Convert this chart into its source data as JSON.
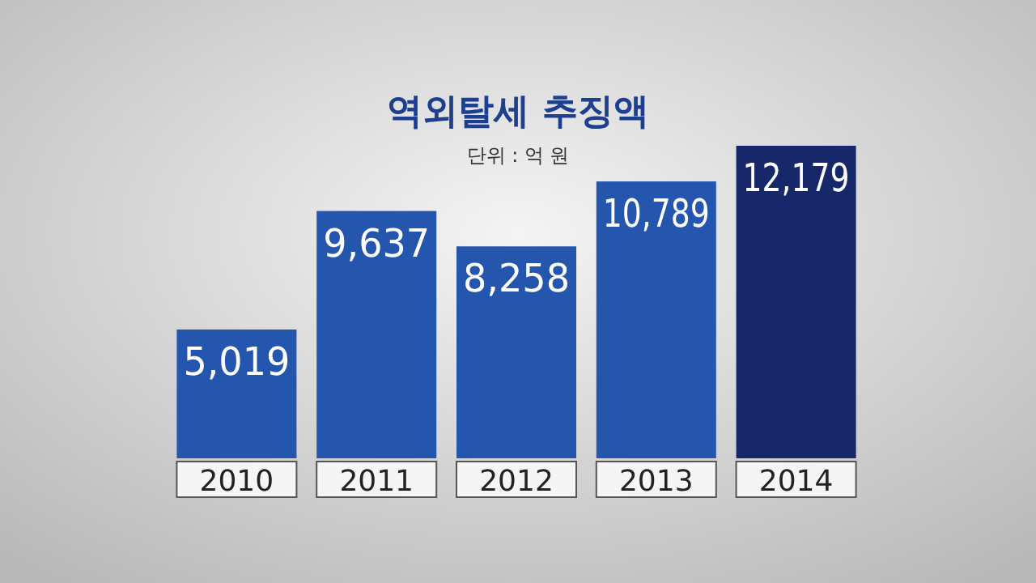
{
  "chart_data": {
    "type": "bar",
    "title": "역외탈세 추징액",
    "subtitle": "단위 : 억 원",
    "categories": [
      "2010",
      "2011",
      "2012",
      "2013",
      "2014"
    ],
    "values": [
      5019,
      9637,
      8258,
      10789,
      12179
    ],
    "value_labels": [
      "5,019",
      "9,637",
      "8,258",
      "10,789",
      "12,179"
    ],
    "colors": [
      "#2456ae",
      "#2456ae",
      "#2456ae",
      "#2456ae",
      "#16276a"
    ],
    "relative": false
  }
}
